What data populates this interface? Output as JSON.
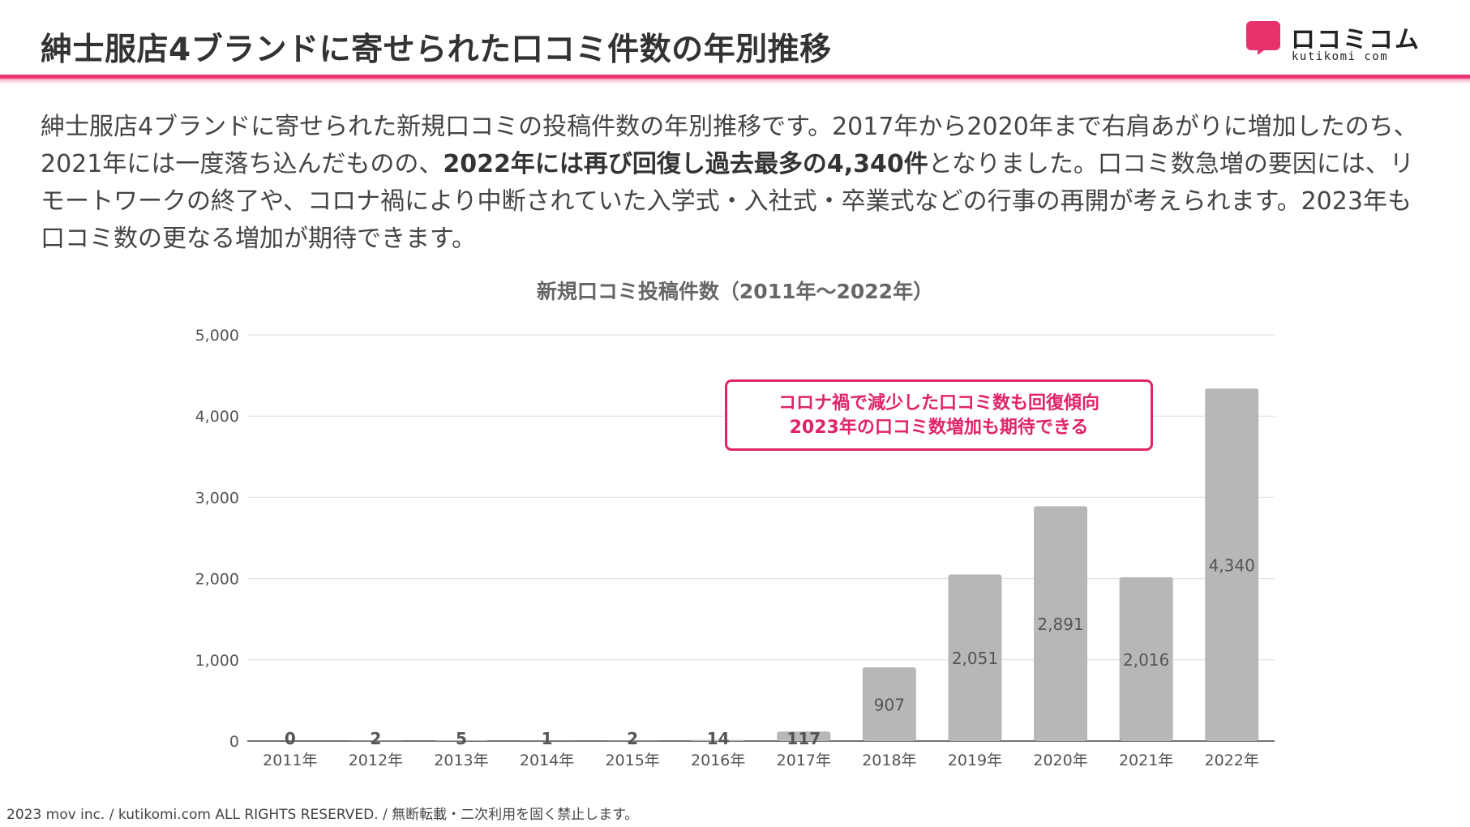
{
  "header": {
    "title": "紳士服店4ブランドに寄せられた口コミ件数の年別推移",
    "logo_text": "ロコミコム",
    "logo_sub": "kutikomi com",
    "accent_color": "#e8326c"
  },
  "intro": {
    "part1": "紳士服店4ブランドに寄せられた新規口コミの投稿件数の年別推移です。2017年から2020年まで右肩あがりに増加したのち、2021年には一度落ち込んだものの、",
    "highlight": "2022年には再び回復し過去最多の4,340件",
    "part2": "となりました。口コミ数急増の要因には、リモートワークの終了や、コロナ禍により中断されていた入学式・入社式・卒業式などの行事の再開が考えられます。2023年も口コミ数の更なる増加が期待できます。"
  },
  "callout": {
    "line1": "コロナ禍で減少した口コミ数も回復傾向",
    "line2": "2023年の口コミ数増加も期待できる",
    "color": "#e0246a"
  },
  "chart_data": {
    "type": "bar",
    "title": "新規口コミ投稿件数（2011年～2022年）",
    "xlabel": "",
    "ylabel": "",
    "categories": [
      "2011年",
      "2012年",
      "2013年",
      "2014年",
      "2015年",
      "2016年",
      "2017年",
      "2018年",
      "2019年",
      "2020年",
      "2021年",
      "2022年"
    ],
    "values": [
      0,
      2,
      5,
      1,
      2,
      14,
      117,
      907,
      2051,
      2891,
      2016,
      4340
    ],
    "data_labels": [
      "0",
      "2",
      "5",
      "1",
      "2",
      "14",
      "117",
      "907",
      "2,051",
      "2,891",
      "2,016",
      "4,340"
    ],
    "ylim": [
      0,
      5000
    ],
    "yticks": [
      0,
      1000,
      2000,
      3000,
      4000,
      5000
    ],
    "ytick_labels": [
      "0",
      "1,000",
      "2,000",
      "3,000",
      "4,000",
      "5,000"
    ],
    "grid": true,
    "bar_color": "#b7b7b7",
    "label_color": "#555555"
  },
  "footer": {
    "text": "2023 mov inc. / kutikomi.com ALL RIGHTS RESERVED. / 無断転載・二次利用を固く禁止します。"
  }
}
